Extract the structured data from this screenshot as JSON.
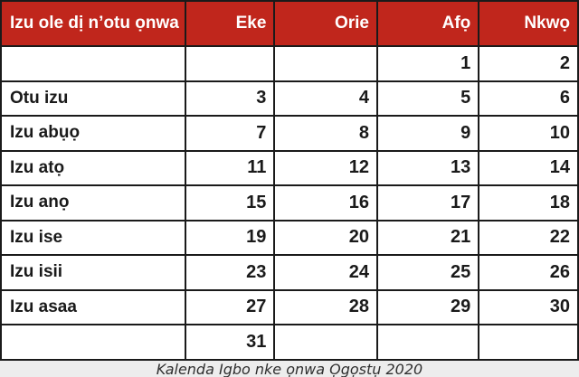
{
  "header": {
    "week_column_label": "Izu ole dị n’otu ọnwa",
    "day_columns": [
      "Eke",
      "Orie",
      "Afọ",
      "Nkwọ"
    ]
  },
  "rows": [
    {
      "label": "",
      "values": [
        "",
        "",
        "1",
        "2"
      ]
    },
    {
      "label": "Otu izu",
      "values": [
        "3",
        "4",
        "5",
        "6"
      ]
    },
    {
      "label": "Izu abụọ",
      "values": [
        "7",
        "8",
        "9",
        "10"
      ]
    },
    {
      "label": "Izu atọ",
      "values": [
        "11",
        "12",
        "13",
        "14"
      ]
    },
    {
      "label": "Izu anọ",
      "values": [
        "15",
        "16",
        "17",
        "18"
      ]
    },
    {
      "label": "Izu ise",
      "values": [
        "19",
        "20",
        "21",
        "22"
      ]
    },
    {
      "label": "Izu isii",
      "values": [
        "23",
        "24",
        "25",
        "26"
      ]
    },
    {
      "label": "Izu asaa",
      "values": [
        "27",
        "28",
        "29",
        "30"
      ]
    },
    {
      "label": "",
      "values": [
        "31",
        "",
        "",
        ""
      ]
    }
  ],
  "caption": "Kalenda Igbo nke ọnwa Ọgọstụ 2020",
  "colors": {
    "header_bg": "#c0261c",
    "header_text": "#ffffff",
    "grid_border": "#1a1a1a",
    "caption_bg": "#ededed"
  }
}
